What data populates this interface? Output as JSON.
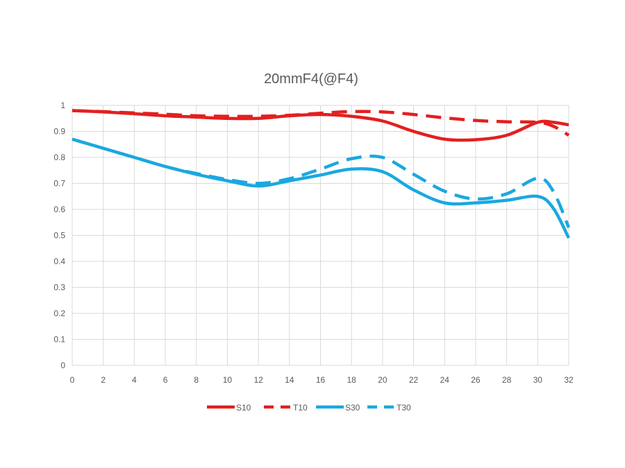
{
  "chart_data": {
    "type": "line",
    "title": "20mmF4(@F4)",
    "xlabel": "",
    "ylabel": "",
    "xlim": [
      0,
      32
    ],
    "ylim": [
      0,
      1
    ],
    "x_ticks": [
      0,
      2,
      4,
      6,
      8,
      10,
      12,
      14,
      16,
      18,
      20,
      22,
      24,
      26,
      28,
      30,
      32
    ],
    "y_ticks": [
      0,
      0.1,
      0.2,
      0.3,
      0.4,
      0.5,
      0.6,
      0.7,
      0.8,
      0.9,
      1
    ],
    "grid": true,
    "legend_position": "bottom",
    "x": [
      0,
      2,
      4,
      6,
      8,
      10,
      12,
      14,
      16,
      18,
      20,
      22,
      24,
      26,
      28,
      30,
      31,
      32
    ],
    "series": [
      {
        "name": "S10",
        "color": "#e41f1f",
        "dash": "solid",
        "values": [
          0.98,
          0.975,
          0.968,
          0.96,
          0.955,
          0.95,
          0.95,
          0.96,
          0.965,
          0.958,
          0.94,
          0.9,
          0.87,
          0.868,
          0.885,
          0.935,
          0.935,
          0.925
        ]
      },
      {
        "name": "T10",
        "color": "#e41f1f",
        "dash": "dashed",
        "values": [
          0.98,
          0.976,
          0.971,
          0.966,
          0.96,
          0.958,
          0.958,
          0.962,
          0.97,
          0.976,
          0.975,
          0.965,
          0.952,
          0.942,
          0.937,
          0.935,
          0.92,
          0.885
        ]
      },
      {
        "name": "S30",
        "color": "#1aa8e0",
        "dash": "solid",
        "values": [
          0.87,
          0.835,
          0.8,
          0.765,
          0.735,
          0.71,
          0.69,
          0.71,
          0.732,
          0.755,
          0.745,
          0.675,
          0.625,
          0.625,
          0.635,
          0.65,
          0.605,
          0.49
        ]
      },
      {
        "name": "T30",
        "color": "#1aa8e0",
        "dash": "dashed",
        "values": [
          0.87,
          0.835,
          0.8,
          0.765,
          0.738,
          0.715,
          0.7,
          0.718,
          0.755,
          0.795,
          0.8,
          0.735,
          0.67,
          0.64,
          0.66,
          0.72,
          0.67,
          0.53
        ]
      }
    ]
  }
}
